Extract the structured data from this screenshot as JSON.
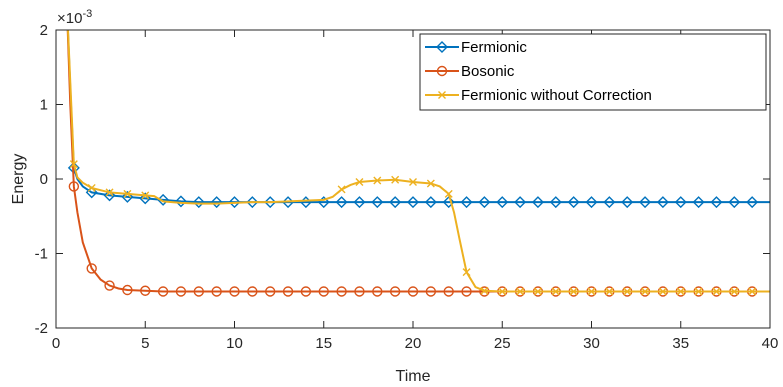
{
  "chart_data": {
    "type": "line",
    "xlabel": "Time",
    "ylabel": "Energy",
    "y_exponent_label": "×10",
    "y_exponent_power": "-3",
    "xlim": [
      0,
      40
    ],
    "ylim": [
      -2,
      2
    ],
    "x_ticks": [
      0,
      5,
      10,
      15,
      20,
      25,
      30,
      35,
      40
    ],
    "y_ticks": [
      -2,
      -1,
      0,
      1,
      2
    ],
    "x_tick_labels": [
      "0",
      "5",
      "10",
      "15",
      "20",
      "25",
      "30",
      "35",
      "40"
    ],
    "y_tick_labels": [
      "-2",
      "-1",
      "0",
      "1",
      "2"
    ],
    "grid": false,
    "legend_position": "top-right",
    "series": [
      {
        "name": "Fermionic",
        "color": "#0072BD",
        "marker": "diamond",
        "x": [
          0.6,
          0.8,
          1,
          1.2,
          1.5,
          2,
          3,
          4,
          5,
          6,
          7,
          8,
          10,
          15,
          20,
          25,
          30,
          35,
          40
        ],
        "y": [
          2.4,
          1.2,
          0.15,
          0.0,
          -0.1,
          -0.18,
          -0.22,
          -0.24,
          -0.26,
          -0.28,
          -0.3,
          -0.31,
          -0.31,
          -0.31,
          -0.31,
          -0.31,
          -0.31,
          -0.31,
          -0.31
        ],
        "marker_x": [
          1,
          2,
          3,
          4,
          5,
          6,
          7,
          8,
          9,
          10,
          11,
          12,
          13,
          14,
          15,
          16,
          17,
          18,
          19,
          20,
          21,
          22,
          23,
          24,
          25,
          26,
          27,
          28,
          29,
          30,
          31,
          32,
          33,
          34,
          35,
          36,
          37,
          38,
          39
        ]
      },
      {
        "name": "Bosonic",
        "color": "#D95319",
        "marker": "circle",
        "x": [
          0.6,
          0.8,
          1,
          1.2,
          1.5,
          2,
          2.5,
          3,
          3.5,
          4,
          5,
          6,
          7,
          8,
          10,
          15,
          20,
          25,
          30,
          35,
          40
        ],
        "y": [
          2.4,
          1.0,
          -0.1,
          -0.45,
          -0.85,
          -1.2,
          -1.35,
          -1.43,
          -1.47,
          -1.49,
          -1.5,
          -1.51,
          -1.51,
          -1.51,
          -1.51,
          -1.51,
          -1.51,
          -1.51,
          -1.51,
          -1.51,
          -1.51
        ],
        "marker_x": [
          1,
          2,
          3,
          4,
          5,
          6,
          7,
          8,
          9,
          10,
          11,
          12,
          13,
          14,
          15,
          16,
          17,
          18,
          19,
          20,
          21,
          22,
          23,
          24,
          25,
          26,
          27,
          28,
          29,
          30,
          31,
          32,
          33,
          34,
          35,
          36,
          37,
          38,
          39
        ]
      },
      {
        "name": "Fermionic without Correction",
        "color": "#EDB120",
        "marker": "x",
        "x": [
          0.6,
          0.8,
          1,
          1.2,
          1.5,
          2,
          3,
          4,
          5,
          5.5,
          6,
          7,
          8,
          9,
          10,
          11,
          12,
          13,
          14,
          15,
          15.5,
          16,
          16.5,
          17,
          18,
          19,
          20,
          21,
          21.5,
          22,
          22.3,
          22.6,
          23,
          23.5,
          24,
          25,
          30,
          35,
          40
        ],
        "y": [
          2.4,
          1.3,
          0.2,
          0.02,
          -0.05,
          -0.12,
          -0.18,
          -0.2,
          -0.22,
          -0.23,
          -0.3,
          -0.32,
          -0.33,
          -0.33,
          -0.32,
          -0.31,
          -0.31,
          -0.3,
          -0.29,
          -0.28,
          -0.24,
          -0.14,
          -0.08,
          -0.04,
          -0.02,
          -0.01,
          -0.04,
          -0.06,
          -0.1,
          -0.2,
          -0.45,
          -0.8,
          -1.25,
          -1.45,
          -1.5,
          -1.51,
          -1.51,
          -1.51,
          -1.51
        ],
        "marker_x": [
          1,
          2,
          3,
          4,
          5,
          16,
          17,
          18,
          19,
          20,
          21,
          22,
          23,
          24,
          25,
          26,
          27,
          28,
          29,
          30,
          31,
          32,
          33,
          34,
          35,
          36,
          37,
          38,
          39
        ]
      }
    ]
  }
}
